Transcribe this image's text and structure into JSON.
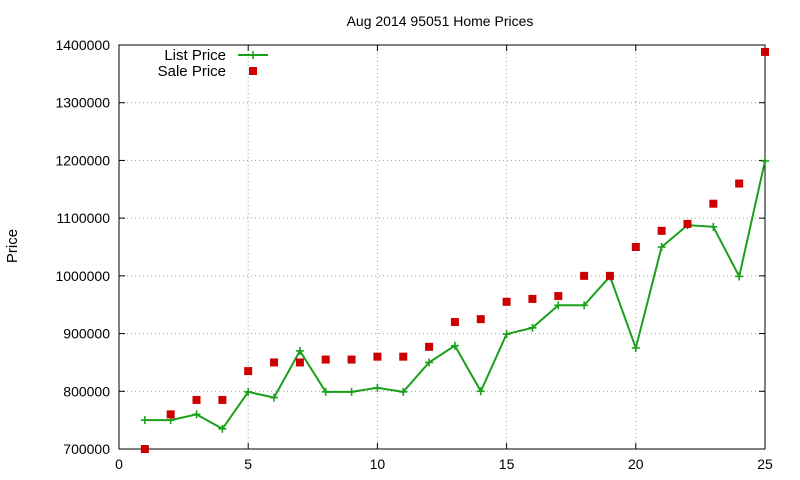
{
  "chart_data": {
    "type": "line",
    "title": "Aug 2014 95051 Home Prices",
    "xlabel": "",
    "ylabel": "Price",
    "xlim": [
      0,
      25
    ],
    "ylim": [
      700000,
      1400000
    ],
    "x_ticks": [
      0,
      5,
      10,
      15,
      20,
      25
    ],
    "y_ticks": [
      700000,
      800000,
      900000,
      1000000,
      1100000,
      1200000,
      1300000,
      1400000
    ],
    "grid": true,
    "legend_position": "top-left",
    "series": [
      {
        "name": "List Price",
        "style": "line-with-plus-markers",
        "color": "#1aa01a",
        "x": [
          1,
          2,
          3,
          4,
          5,
          6,
          7,
          8,
          9,
          10,
          11,
          12,
          13,
          14,
          15,
          16,
          17,
          18,
          19,
          20,
          21,
          22,
          23,
          24,
          25
        ],
        "values": [
          750000,
          750000,
          760000,
          735000,
          799000,
          789000,
          870000,
          799000,
          799000,
          806000,
          799000,
          850000,
          879000,
          800000,
          899000,
          910000,
          949000,
          949000,
          999000,
          875000,
          1050000,
          1088000,
          1085000,
          999000,
          1199000
        ]
      },
      {
        "name": "Sale Price",
        "style": "square-markers",
        "color": "#cc0000",
        "x": [
          1,
          2,
          3,
          4,
          5,
          6,
          7,
          8,
          9,
          10,
          11,
          12,
          13,
          14,
          15,
          16,
          17,
          18,
          19,
          20,
          21,
          22,
          23,
          24,
          25
        ],
        "values": [
          700000,
          760000,
          785000,
          785000,
          835000,
          850000,
          850000,
          855000,
          855000,
          860000,
          860000,
          877000,
          920000,
          925000,
          955000,
          960000,
          965000,
          1000000,
          1000000,
          1050000,
          1078000,
          1090000,
          1125000,
          1160000,
          1388000
        ]
      }
    ]
  }
}
